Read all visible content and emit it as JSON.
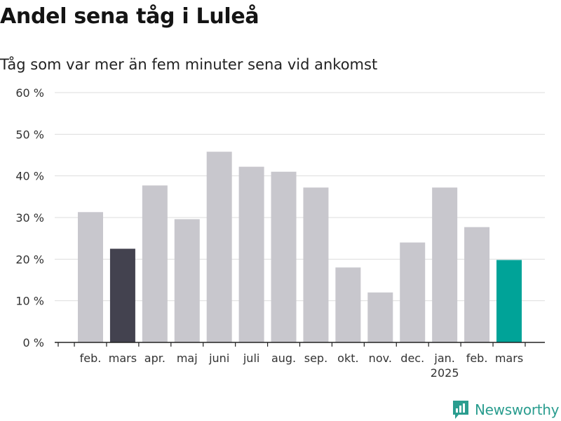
{
  "title": "Andel sena tåg i Luleå",
  "subtitle": "Tåg som var mer än fem minuter sena vid ankomst",
  "brand": {
    "name": "Newsworthy",
    "icon": "newsworthy-logo-icon"
  },
  "colors": {
    "bar_default": "#c8c7cd",
    "bar_previous_year": "#43424f",
    "bar_current": "#00a398",
    "grid": "#dddddd",
    "axis": "#222222",
    "brand": "#2a9d8f"
  },
  "chart_data": {
    "type": "bar",
    "title": "Andel sena tåg i Luleå",
    "subtitle": "Tåg som var mer än fem minuter sena vid ankomst",
    "categories": [
      "feb.",
      "mars",
      "apr.",
      "maj",
      "juni",
      "juli",
      "aug.",
      "sep.",
      "okt.",
      "nov.",
      "dec.",
      "jan.",
      "feb.",
      "mars"
    ],
    "category_sublabels": [
      "",
      "",
      "",
      "",
      "",
      "",
      "",
      "",
      "",
      "",
      "",
      "2025",
      "",
      ""
    ],
    "values": [
      31.3,
      22.5,
      37.7,
      29.6,
      45.8,
      42.2,
      41.0,
      37.2,
      18.0,
      12.0,
      24.0,
      37.2,
      27.7,
      19.8
    ],
    "highlight": [
      "default",
      "previous_year",
      "default",
      "default",
      "default",
      "default",
      "default",
      "default",
      "default",
      "default",
      "default",
      "default",
      "default",
      "current"
    ],
    "yticks": [
      "0 %",
      "10 %",
      "20 %",
      "30 %",
      "40 %",
      "50 %",
      "60 %"
    ],
    "ylim": [
      0,
      60
    ],
    "grid": true,
    "xlabel": "",
    "ylabel": ""
  }
}
